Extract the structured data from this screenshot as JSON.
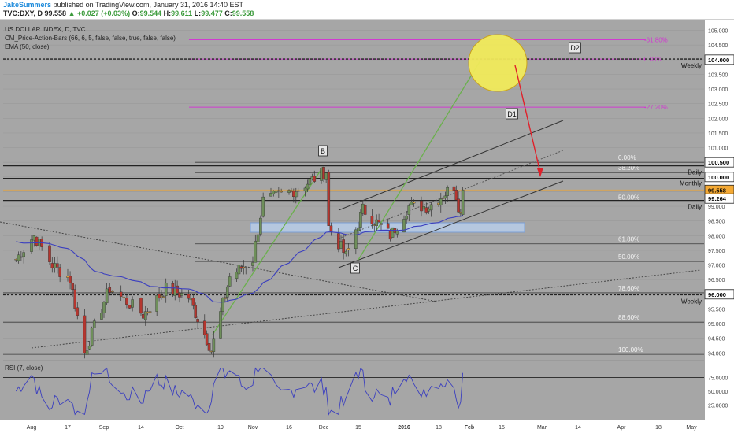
{
  "header": {
    "author": "JakeSummers",
    "published": "published on TradingView.com, January 31, 2016 14:40 EST",
    "ticker": "TVC:DXY, D",
    "last": "99.558",
    "change": "+0.027 (+0.03%)",
    "ohlc": [
      {
        "label": "O:",
        "value": "99.544"
      },
      {
        "label": "H:",
        "value": "99.611"
      },
      {
        "label": "L:",
        "value": "99.477"
      },
      {
        "label": "C:",
        "value": "99.558"
      }
    ]
  },
  "legend": {
    "title": "US DOLLAR INDEX, D, TVC",
    "study1": "CM_Price-Action-Bars (66, 6, 5, false, false, true, false, false)",
    "study2": "EMA (50, close)",
    "rsi": "RSI (7, close)"
  },
  "colors": {
    "background": "#a6a6a6",
    "up_candle": "#6e8f5a",
    "down_candle": "#b5362f",
    "doji_candle": "#d9a441",
    "ema": "#3b3fbf",
    "rsi": "#3b3fbf",
    "fib_extension": "#d03bd0",
    "target_circle": "#f0ea5a",
    "projection_arrow": "#e0202a",
    "leg_line": "#6ab04c",
    "support_box": "#b9cfee"
  },
  "chart_data": {
    "type": "candlestick",
    "symbol": "DXY",
    "timeframe": "D",
    "ylim": [
      93.9,
      105.15
    ],
    "y_ticks": [
      "105.000",
      "104.500",
      "104.000",
      "103.500",
      "103.000",
      "102.500",
      "102.000",
      "101.500",
      "101.000",
      "100.500",
      "100.000",
      "99.500",
      "99.000",
      "98.500",
      "98.000",
      "97.500",
      "97.000",
      "96.500",
      "96.000",
      "95.500",
      "95.000",
      "94.500",
      "94.000"
    ],
    "x_ticks": [
      "Aug",
      "17",
      "Sep",
      "14",
      "Oct",
      "19",
      "Nov",
      "16",
      "Dec",
      "15",
      "2016",
      "18",
      "Feb",
      "15",
      "Mar",
      "14",
      "Apr",
      "18",
      "May"
    ],
    "price_labels": [
      {
        "text": "104.000",
        "price": 104.0
      },
      {
        "text": "100.500",
        "price": 100.5
      },
      {
        "text": "100.000",
        "price": 100.0
      },
      {
        "text": "99.558",
        "price": 99.558
      },
      {
        "text": "99.264",
        "price": 99.264
      },
      {
        "text": "96.000",
        "price": 96.0
      }
    ],
    "ohlc_anchors": [
      {
        "date": "2015-07-28",
        "close": 97.2
      },
      {
        "date": "2015-08-04",
        "close": 98.0
      },
      {
        "date": "2015-08-11",
        "close": 97.0
      },
      {
        "date": "2015-08-18",
        "close": 96.5
      },
      {
        "date": "2015-08-24",
        "close": 94.0
      },
      {
        "date": "2015-09-03",
        "close": 96.2
      },
      {
        "date": "2015-09-15",
        "close": 95.3
      },
      {
        "date": "2015-09-25",
        "close": 96.2
      },
      {
        "date": "2015-10-05",
        "close": 95.9
      },
      {
        "date": "2015-10-15",
        "close": 94.1
      },
      {
        "date": "2015-10-23",
        "close": 96.6
      },
      {
        "date": "2015-11-02",
        "close": 97.2
      },
      {
        "date": "2015-11-06",
        "close": 99.2
      },
      {
        "date": "2015-11-20",
        "close": 99.6
      },
      {
        "date": "2015-12-02",
        "close": 100.2
      },
      {
        "date": "2015-12-03",
        "close": 98.3
      },
      {
        "date": "2015-12-10",
        "close": 97.3
      },
      {
        "date": "2015-12-17",
        "close": 98.9
      },
      {
        "date": "2015-12-29",
        "close": 98.0
      },
      {
        "date": "2016-01-06",
        "close": 99.0
      },
      {
        "date": "2016-01-14",
        "close": 99.0
      },
      {
        "date": "2016-01-25",
        "close": 99.7
      },
      {
        "date": "2016-01-28",
        "close": 98.7
      },
      {
        "date": "2016-01-29",
        "close": 99.558
      }
    ],
    "rsi": {
      "y_ticks": [
        "75.0000",
        "50.0000",
        "25.0000"
      ],
      "levels": [
        75,
        25
      ]
    }
  },
  "annotations": {
    "fib_extension": [
      {
        "label": "-61.80%",
        "price": 104.68
      },
      {
        "label": "0.00%",
        "price": 104.02
      },
      {
        "label": "-27.20%",
        "price": 102.38
      }
    ],
    "fib_retracement": [
      {
        "label": "0.00%",
        "price": 100.5
      },
      {
        "label": "38.20%",
        "price": 100.15
      },
      {
        "label": "50.00%",
        "price": 99.15
      },
      {
        "label": "61.80%",
        "price": 97.72
      },
      {
        "label": "50.00%",
        "price": 97.12
      },
      {
        "label": "78.60%",
        "price": 96.05
      },
      {
        "label": "88.60%",
        "price": 95.05
      },
      {
        "label": "100.00%",
        "price": 93.95
      }
    ],
    "level_tags": [
      {
        "label": "Weekly",
        "price": 104.02
      },
      {
        "label": "Daily",
        "price": 100.38
      },
      {
        "label": "Monthly",
        "price": 99.95
      },
      {
        "label": "Daily",
        "price": 99.2
      },
      {
        "label": "Weekly",
        "price": 95.98
      }
    ],
    "wave_labels": [
      "B",
      "C",
      "D1",
      "D2"
    ]
  }
}
